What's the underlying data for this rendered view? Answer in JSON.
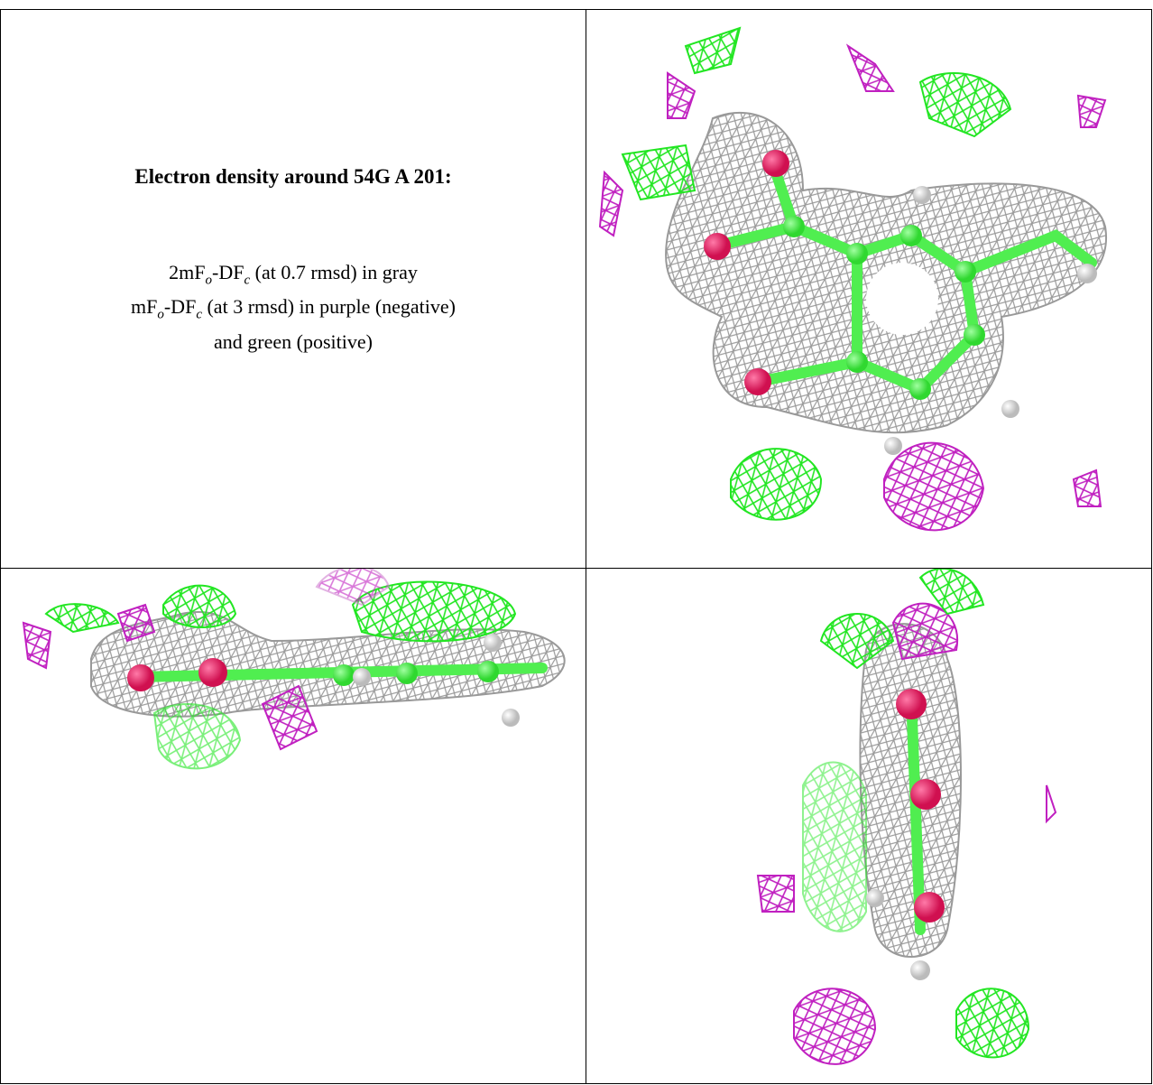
{
  "figure": {
    "title": "Electron density around 54G A 201:",
    "lines": [
      [
        {
          "text": "2mF"
        },
        {
          "sub": "o"
        },
        {
          "text": "-DF"
        },
        {
          "sub": "c"
        },
        {
          "text": " (at 0.7 rmsd) in gray"
        }
      ],
      [
        {
          "text": "mF"
        },
        {
          "sub": "o"
        },
        {
          "text": "-DF"
        },
        {
          "sub": "c"
        },
        {
          "text": " (at 3 rmsd) in purple (negative)"
        }
      ],
      [
        {
          "text": "and green (positive)"
        }
      ]
    ]
  }
}
